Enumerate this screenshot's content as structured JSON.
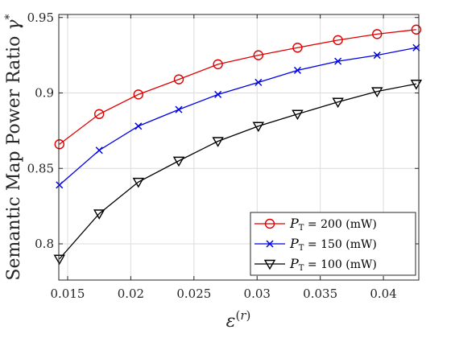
{
  "chart_data": {
    "type": "line",
    "xlabel": "ε(r)",
    "ylabel": "Semantic Map Power Ratio γ*",
    "xlim": [
      0.0143,
      0.0428
    ],
    "ylim": [
      0.776,
      0.952
    ],
    "xticks": [
      0.015,
      0.02,
      0.025,
      0.03,
      0.035,
      0.04
    ],
    "xtick_labels": [
      "0.015",
      "0.02",
      "0.025",
      "0.03",
      "0.035",
      "0.04"
    ],
    "yticks": [
      0.8,
      0.85,
      0.9,
      0.95
    ],
    "ytick_labels": [
      "0.8",
      "0.85",
      "0.9",
      "0.95"
    ],
    "grid": true,
    "legend_position": "bottom-right",
    "x": [
      0.01435,
      0.0175,
      0.0206,
      0.0238,
      0.0269,
      0.0301,
      0.0332,
      0.0364,
      0.0395,
      0.0426
    ],
    "series": [
      {
        "name": "P_T = 200 (mW)",
        "legend_main": "P",
        "legend_sub": "T",
        "legend_rest": " = 200 (mW)",
        "color": "#e00000",
        "marker": "circle",
        "values": [
          0.866,
          0.886,
          0.899,
          0.909,
          0.919,
          0.925,
          0.93,
          0.935,
          0.939,
          0.942
        ]
      },
      {
        "name": "P_T = 150 (mW)",
        "legend_main": "P",
        "legend_sub": "T",
        "legend_rest": " = 150 (mW)",
        "color": "#0000e6",
        "marker": "x",
        "values": [
          0.839,
          0.862,
          0.878,
          0.889,
          0.899,
          0.907,
          0.915,
          0.921,
          0.925,
          0.93
        ]
      },
      {
        "name": "P_T = 100 (mW)",
        "legend_main": "P",
        "legend_sub": "T",
        "legend_rest": " = 100 (mW)",
        "color": "#000000",
        "marker": "triangle-down",
        "values": [
          0.79,
          0.82,
          0.841,
          0.855,
          0.868,
          0.878,
          0.886,
          0.894,
          0.901,
          0.906
        ]
      }
    ]
  }
}
